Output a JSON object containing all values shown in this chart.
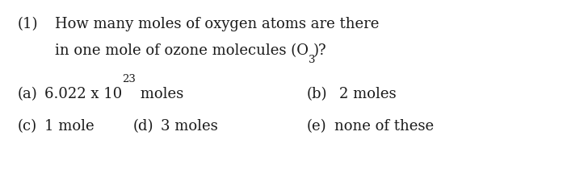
{
  "background_color": "#ffffff",
  "fig_width": 7.28,
  "fig_height": 2.26,
  "dpi": 100,
  "text_color": "#1a1a1a",
  "font_family": "DejaVu Serif",
  "font_size": 13.0,
  "font_size_small": 9.5,
  "question_num": "(1)",
  "q_line1": "How many moles of oxygen atoms are there",
  "q_line2_pre": "in one mole of ozone molecules (O",
  "q_line2_sub": "3",
  "q_line2_post": ")?",
  "a_label": "(a)",
  "a_main": "6.022 x 10",
  "a_sup": "23",
  "a_tail": " moles",
  "b_label": "(b)",
  "b_text": "2 moles",
  "c_label": "(c)",
  "c_text": "1 mole",
  "d_label": "(d)",
  "d_text": "3 moles",
  "e_label": "(e)",
  "e_text": "none of these"
}
